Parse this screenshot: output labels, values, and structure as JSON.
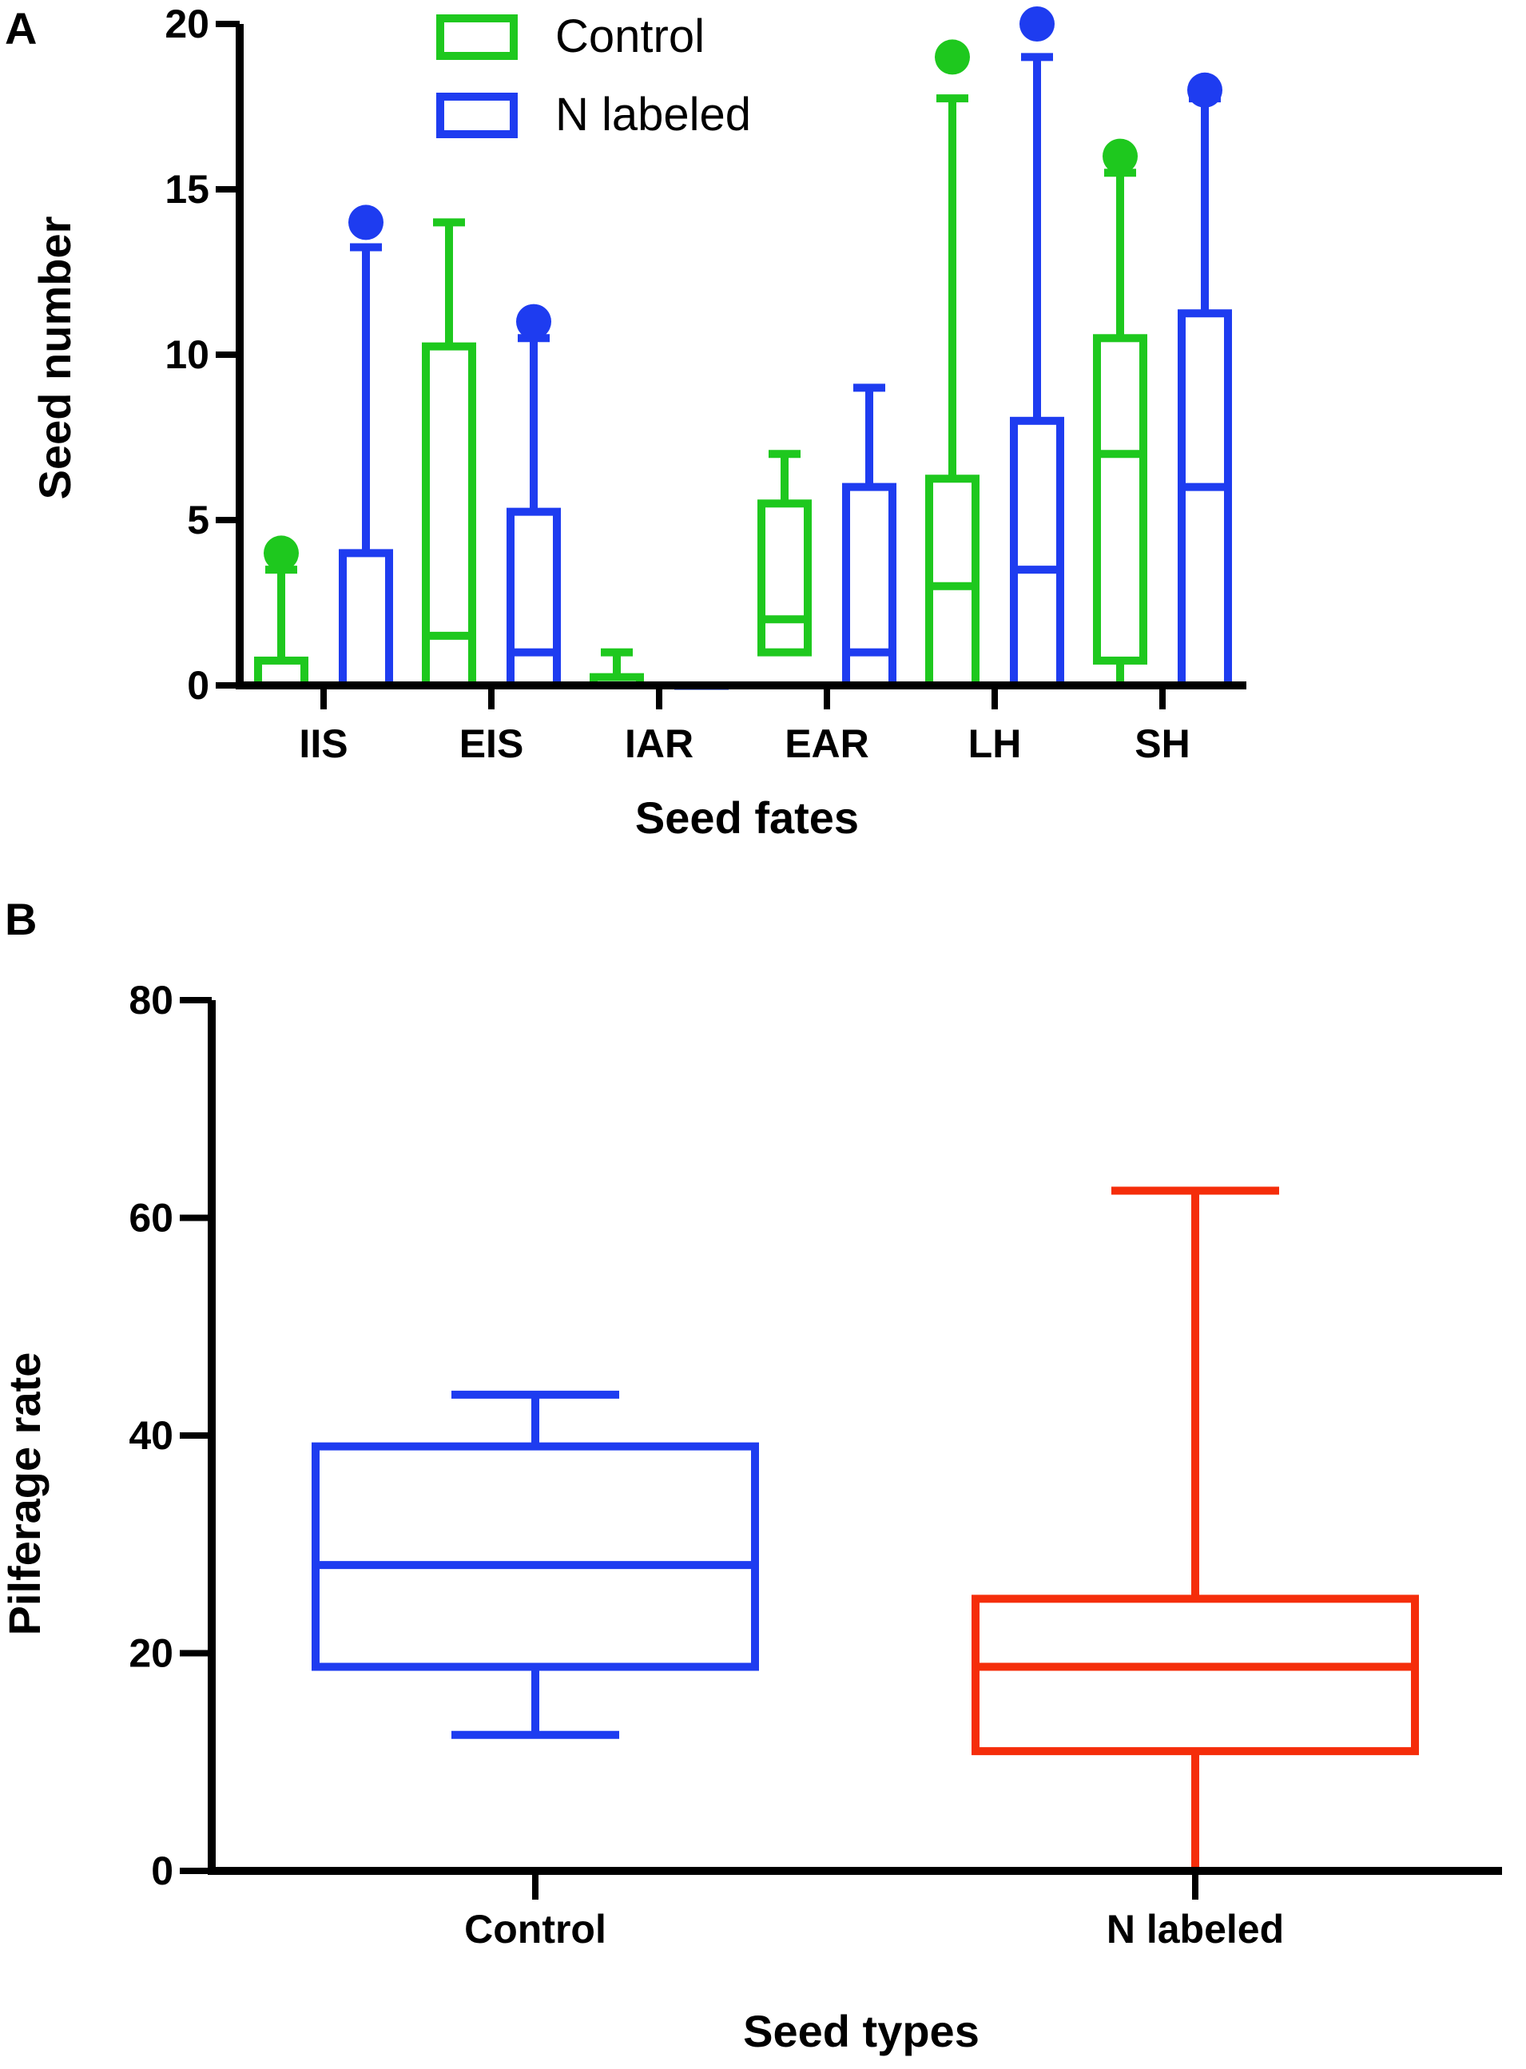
{
  "figure": {
    "panel_a_letter": "A",
    "panel_b_letter": "B"
  },
  "chart_data": [
    {
      "type": "box",
      "panel": "A",
      "xlabel": "Seed fates",
      "ylabel": "Seed number",
      "ylim": [
        0,
        20
      ],
      "yticks": [
        0,
        5,
        10,
        15,
        20
      ],
      "ytick_labels": [
        "0",
        "5",
        "10",
        "15",
        "20"
      ],
      "categories": [
        "IIS",
        "EIS",
        "IAR",
        "EAR",
        "LH",
        "SH"
      ],
      "legend": {
        "position": "top-center"
      },
      "series": [
        {
          "name": "Control",
          "color": "#1ec81e",
          "boxes": [
            {
              "whisker_low": 0,
              "q1": 0,
              "median": 0,
              "q3": 0.75,
              "whisker_high": 3.5,
              "outliers": [
                4
              ]
            },
            {
              "whisker_low": 0,
              "q1": 0,
              "median": 1.5,
              "q3": 10.25,
              "whisker_high": 14,
              "outliers": []
            },
            {
              "whisker_low": 0,
              "q1": 0,
              "median": 0,
              "q3": 0.25,
              "whisker_high": 1,
              "outliers": []
            },
            {
              "whisker_low": 1,
              "q1": 1,
              "median": 2,
              "q3": 5.5,
              "whisker_high": 7,
              "outliers": []
            },
            {
              "whisker_low": 0,
              "q1": 0,
              "median": 3,
              "q3": 6.25,
              "whisker_high": 17.75,
              "outliers": [
                19
              ]
            },
            {
              "whisker_low": 0,
              "q1": 0.75,
              "median": 7,
              "q3": 10.5,
              "whisker_high": 15.5,
              "outliers": [
                16
              ]
            }
          ]
        },
        {
          "name": "N labeled",
          "color": "#1e3cf0",
          "boxes": [
            {
              "whisker_low": 0,
              "q1": 0,
              "median": 0,
              "q3": 4,
              "whisker_high": 13.25,
              "outliers": [
                14
              ]
            },
            {
              "whisker_low": 0,
              "q1": 0,
              "median": 1,
              "q3": 5.25,
              "whisker_high": 10.5,
              "outliers": [
                11
              ]
            },
            {
              "whisker_low": 0,
              "q1": 0,
              "median": 0,
              "q3": 0,
              "whisker_high": 0,
              "outliers": []
            },
            {
              "whisker_low": 0,
              "q1": 0,
              "median": 1,
              "q3": 6,
              "whisker_high": 9,
              "outliers": []
            },
            {
              "whisker_low": 0,
              "q1": 0,
              "median": 3.5,
              "q3": 8,
              "whisker_high": 19,
              "outliers": [
                20
              ]
            },
            {
              "whisker_low": 0,
              "q1": 0,
              "median": 6,
              "q3": 11.25,
              "whisker_high": 17.75,
              "outliers": [
                18
              ]
            }
          ]
        }
      ]
    },
    {
      "type": "box",
      "panel": "B",
      "xlabel": "Seed types",
      "ylabel": "Pilferage rate",
      "ylim": [
        0,
        80
      ],
      "yticks": [
        0,
        20,
        40,
        60,
        80
      ],
      "ytick_labels": [
        "0",
        "20",
        "40",
        "60",
        "80"
      ],
      "categories": [
        "Control",
        "N labeled"
      ],
      "boxes": [
        {
          "name": "Control",
          "color": "#1e3cf0",
          "whisker_low": 12.5,
          "q1": 18.75,
          "median": 28.1,
          "q3": 39,
          "whisker_high": 43.75
        },
        {
          "name": "N labeled",
          "color": "#f52d0a",
          "whisker_low": 0,
          "q1": 11,
          "median": 18.75,
          "q3": 25,
          "whisker_high": 62.5
        }
      ]
    }
  ]
}
